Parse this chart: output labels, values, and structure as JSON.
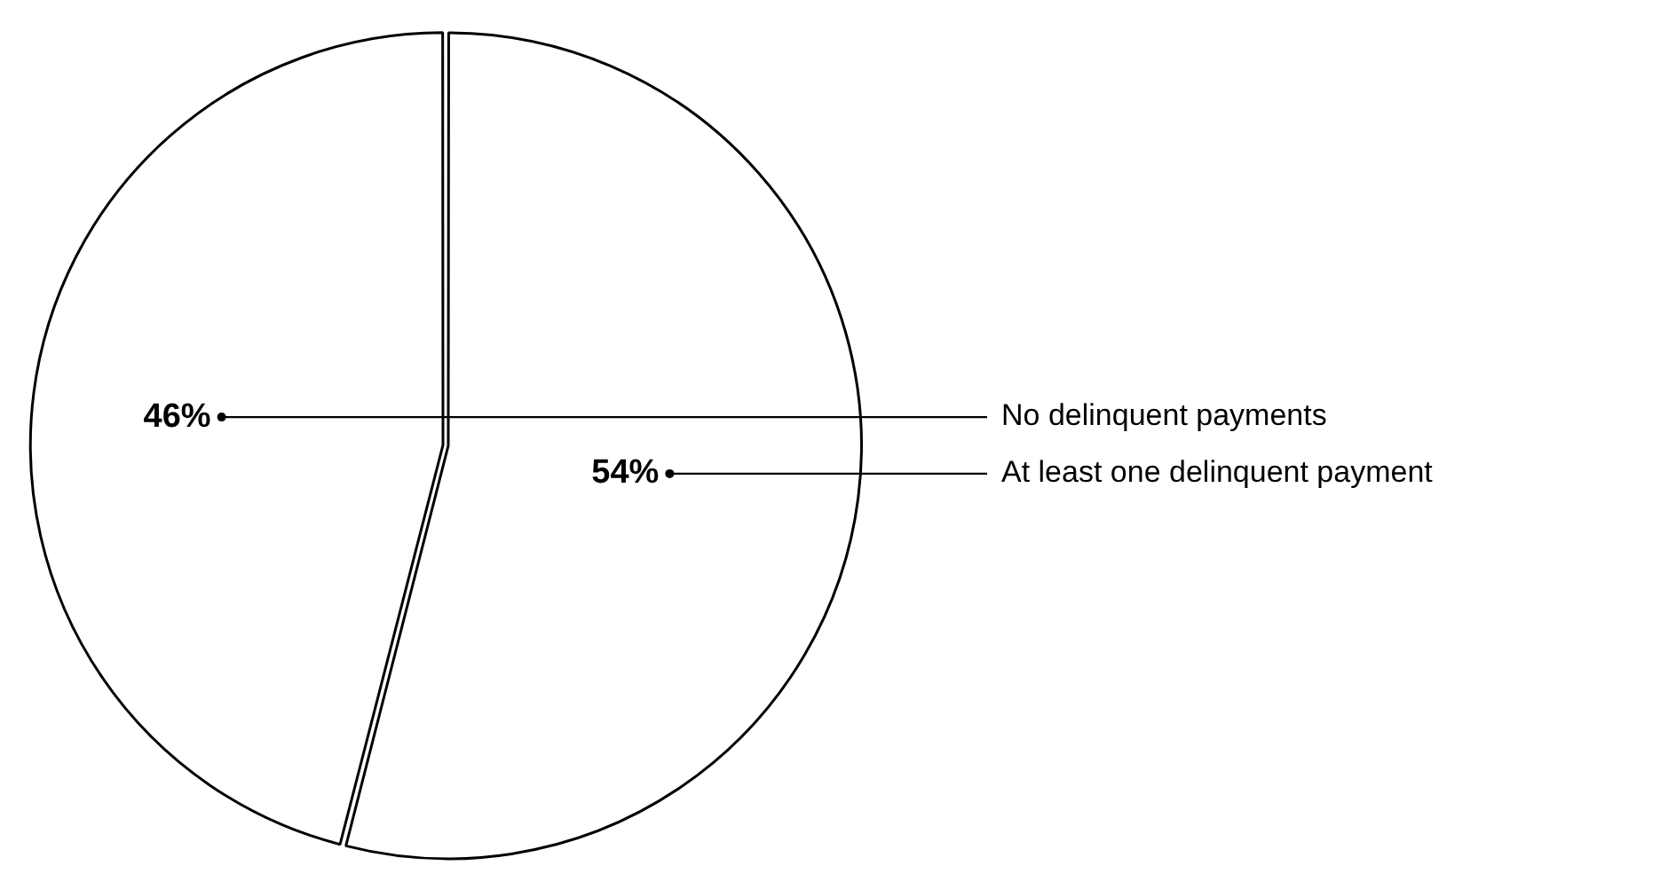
{
  "chart_data": {
    "type": "pie",
    "categories": [
      "At least one delinquent payment",
      "No delinquent payments"
    ],
    "values": [
      54,
      46
    ],
    "colors": [
      "#ffffff",
      "#ffffff"
    ],
    "value_labels": [
      "54%",
      "46%"
    ],
    "legend": false
  }
}
